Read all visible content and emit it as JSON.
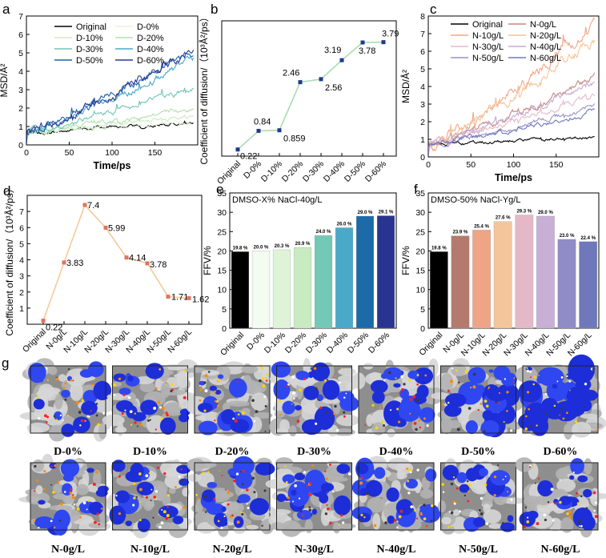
{
  "chart_data": [
    {
      "panel": "a",
      "type": "line",
      "xlabel": "Time/ps",
      "ylabel": "MSD/Å²",
      "xlim": [
        0,
        200
      ],
      "ylim": [
        0,
        7
      ],
      "xticks": [
        0,
        50,
        100,
        150
      ],
      "yticks": [
        0,
        1,
        2,
        3,
        4,
        5,
        6,
        7
      ],
      "legend": [
        "Original",
        "D-0%",
        "D-10%",
        "D-20%",
        "D-30%",
        "D-40%",
        "D-50%",
        "D-60%"
      ],
      "colors": [
        "#000000",
        "#e4f5dc",
        "#cdebc3",
        "#b3e0ad",
        "#70c6b6",
        "#4ba8c8",
        "#1f62a6",
        "#2b3a94"
      ],
      "end_values": [
        1.25,
        1.3,
        1.6,
        2.0,
        3.0,
        4.5,
        5.0,
        5.1
      ]
    },
    {
      "panel": "b",
      "type": "line",
      "ylabel": "Coefficient of diffusion/（10³Å²/ps）",
      "categories": [
        "Original",
        "D-0%",
        "D-10%",
        "D-20%",
        "D-30%",
        "D-40%",
        "D-50%",
        "D-60%"
      ],
      "values": [
        0.22,
        0.84,
        0.859,
        2.46,
        2.56,
        3.19,
        3.78,
        3.79
      ],
      "labels": [
        "0.22",
        "0.84",
        "0.859",
        "2.46",
        "2.56",
        "3.19",
        "3.78",
        "3.79"
      ],
      "ylim": [
        0,
        4.5
      ],
      "line_color": "#a8dcb0",
      "marker_color": "#1f3a8a"
    },
    {
      "panel": "c",
      "type": "line",
      "xlabel": "Time/ps",
      "ylabel": "MSD/Å²",
      "xlim": [
        0,
        200
      ],
      "ylim": [
        0,
        8
      ],
      "xticks": [
        0,
        50,
        100,
        150
      ],
      "yticks": [
        0,
        1,
        2,
        3,
        4,
        5,
        6,
        7,
        8
      ],
      "legend": [
        "Original",
        "N-0g/L",
        "N-10g/L",
        "N-20g/L",
        "N-30g/L",
        "N-40g/L",
        "N-50g/L",
        "N-60g/L"
      ],
      "colors": [
        "#000000",
        "#c8877f",
        "#f4a586",
        "#f6c497",
        "#e7b9c9",
        "#c6abd4",
        "#9b92c8",
        "#6e78bb"
      ],
      "end_values": [
        1.2,
        4.5,
        7.5,
        6.6,
        3.5,
        4.3,
        2.8,
        2.5
      ]
    },
    {
      "panel": "d",
      "type": "line",
      "ylabel": "Coefficient of diffusion/（10³Å²/ps）",
      "categories": [
        "Original",
        "N-0g/L",
        "N-10g/L",
        "N-20g/L",
        "N-30g/L",
        "N-40g/L",
        "N-50g/L",
        "N-60g/L"
      ],
      "values": [
        0.22,
        3.83,
        7.4,
        5.99,
        4.14,
        3.78,
        1.71,
        1.62
      ],
      "labels": [
        "0.22",
        "3.83",
        "7.4",
        "5.99",
        "4.14",
        "3.78",
        "1.71",
        "1.62"
      ],
      "ylim": [
        0,
        8
      ],
      "yticks": [
        1,
        2,
        3,
        4,
        5,
        6,
        7
      ],
      "line_color": "#f7c89a",
      "marker_color": "#e0735f"
    },
    {
      "panel": "e",
      "type": "bar",
      "title": "DMSO-X% NaCl-40g/L",
      "ylabel": "FFV/%",
      "categories": [
        "Original",
        "D-0%",
        "D-10%",
        "D-20%",
        "D-30%",
        "D-40%",
        "D-50%",
        "D-60%"
      ],
      "values": [
        19.8,
        20.0,
        20.3,
        20.9,
        24.0,
        26.0,
        29.0,
        29.1
      ],
      "labels": [
        "19.8 %",
        "20.0 %",
        "20.3 %",
        "20.9 %",
        "24.0 %",
        "26.0 %",
        "29.0 %",
        "29.1 %"
      ],
      "colors": [
        "#000000",
        "#f4fbf1",
        "#def3d8",
        "#c8ebc1",
        "#73c8b6",
        "#4aa9c9",
        "#1c6aa8",
        "#28348f"
      ],
      "ylim": [
        0,
        35
      ],
      "yticks": [
        0,
        5,
        10,
        15,
        20,
        25,
        30,
        35
      ]
    },
    {
      "panel": "f",
      "type": "bar",
      "title": "DMSO-50% NaCl-Yg/L",
      "ylabel": "FFV/%",
      "categories": [
        "Original",
        "N-0g/L",
        "N-10g/L",
        "N-20g/L",
        "N-30g/L",
        "N-40g/L",
        "N-50g/L",
        "N-60g/L"
      ],
      "values": [
        19.8,
        23.9,
        25.4,
        27.6,
        29.3,
        29.0,
        23.0,
        22.4
      ],
      "labels": [
        "19.8 %",
        "23.9 %",
        "25.4 %",
        "27.6 %",
        "29.3 %",
        "29.0 %",
        "23.0 %",
        "22.4 %"
      ],
      "colors": [
        "#000000",
        "#b47a6e",
        "#f0a486",
        "#f4c59b",
        "#e5b8c8",
        "#c7afd6",
        "#8f8cc6",
        "#6f78bb"
      ],
      "ylim": [
        0,
        35
      ],
      "yticks": [
        0,
        5,
        10,
        15,
        20,
        25,
        30,
        35
      ]
    }
  ],
  "panel_labels": [
    "a",
    "b",
    "c",
    "d",
    "e",
    "f",
    "g"
  ],
  "panel_g": {
    "row1": [
      "D-0%",
      "D-10%",
      "D-20%",
      "D-30%",
      "D-40%",
      "D-50%",
      "D-60%"
    ],
    "row2": [
      "N-0g/L",
      "N-10g/L",
      "N-20g/L",
      "N-30g/L",
      "N-40g/L",
      "N-50g/L",
      "N-60g/L"
    ],
    "blue_amount_row1": [
      0.32,
      0.3,
      0.34,
      0.4,
      0.52,
      0.62,
      0.75
    ],
    "blue_amount_row2": [
      0.38,
      0.44,
      0.46,
      0.48,
      0.55,
      0.42,
      0.36
    ]
  }
}
